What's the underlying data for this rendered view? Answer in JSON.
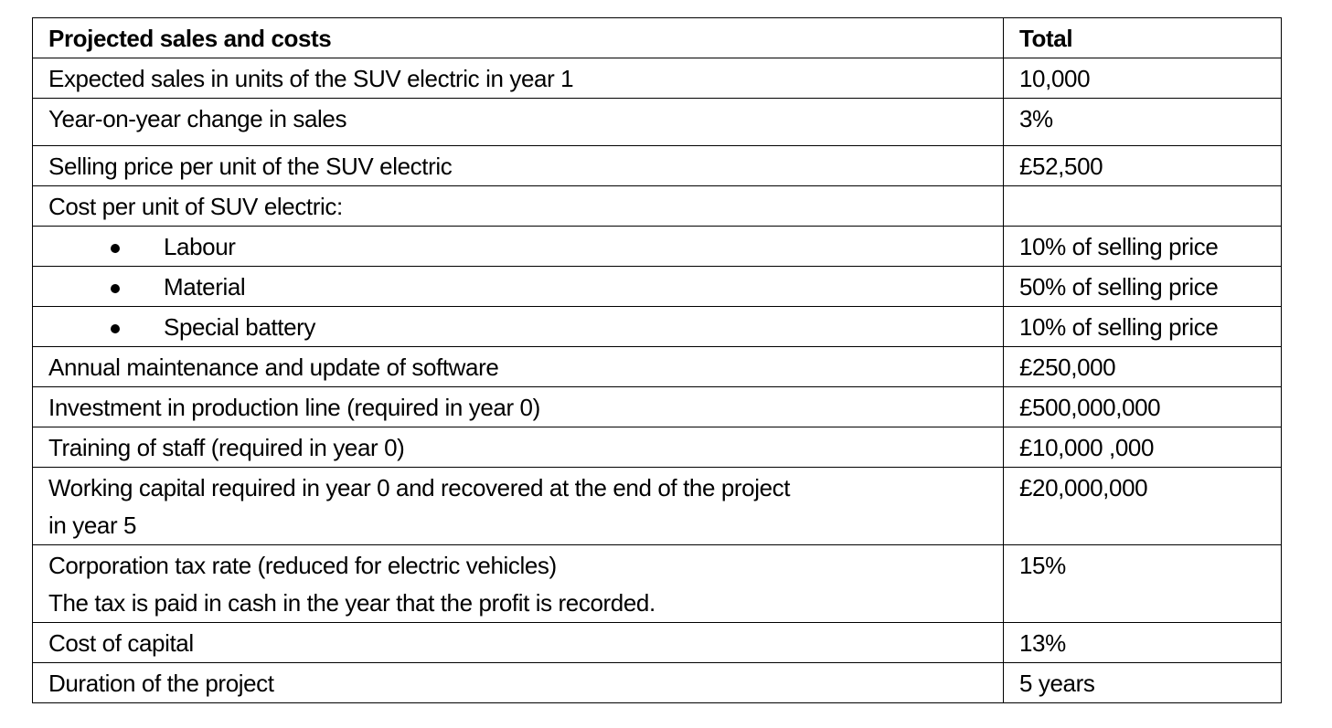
{
  "header": {
    "label": "Projected sales and costs",
    "value": "Total"
  },
  "rows": [
    {
      "label": "Expected sales in units of the SUV electric in year 1",
      "value": "10,000"
    },
    {
      "label": "Year-on-year change in sales",
      "value": "3%"
    },
    {
      "label": "Selling price per unit of the SUV electric",
      "value": "£52,500"
    },
    {
      "label": "Cost per unit of SUV electric:",
      "value": ""
    },
    {
      "label": "Labour",
      "value": "10% of selling price"
    },
    {
      "label": "Material",
      "value": "50% of selling price"
    },
    {
      "label": "Special battery",
      "value": "10% of selling price"
    },
    {
      "label": "Annual maintenance and update of software",
      "value": "£250,000"
    },
    {
      "label": "Investment in production line (required in year 0)",
      "value": "£500,000,000"
    },
    {
      "label": "Training of staff (required in year 0)",
      "value": "£10,000 ,000"
    },
    {
      "lines": [
        "Working capital required in year 0 and recovered at the end of the project",
        "in year 5"
      ],
      "value": "£20,000,000"
    },
    {
      "lines": [
        "Corporation tax rate (reduced for electric vehicles)",
        "The tax is paid in cash in the year that the profit is recorded."
      ],
      "value": "15%"
    },
    {
      "label": "Cost of capital",
      "value": "13%"
    },
    {
      "label": "Duration of the project",
      "value": "5 years"
    }
  ]
}
